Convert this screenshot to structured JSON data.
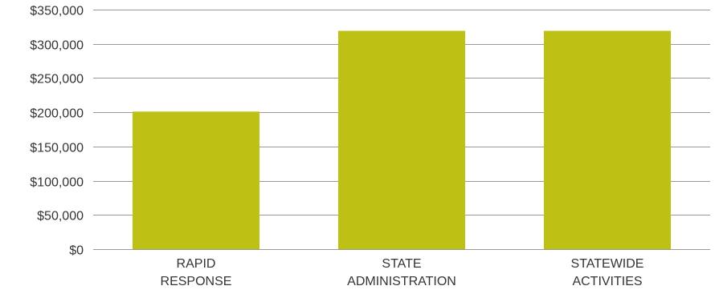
{
  "chart_data": {
    "type": "bar",
    "categories": [
      [
        "RAPID",
        "RESPONSE"
      ],
      [
        "STATE",
        "ADMINISTRATION"
      ],
      [
        "STATEWIDE",
        "ACTIVITIES"
      ]
    ],
    "values": [
      201000,
      319000,
      319000
    ],
    "ylim": [
      0,
      350000
    ],
    "yticks": [
      0,
      50000,
      100000,
      150000,
      200000,
      250000,
      300000,
      350000
    ],
    "ytick_labels": [
      "$0",
      "$50,000",
      "$100,000",
      "$150,000",
      "$200,000",
      "$250,000",
      "$300,000",
      "$350,000"
    ],
    "bar_color": "#bcc113",
    "grid": true,
    "grid_color": "#999999",
    "tick_label_color": "#333333",
    "title": "",
    "xlabel": "",
    "ylabel": ""
  }
}
